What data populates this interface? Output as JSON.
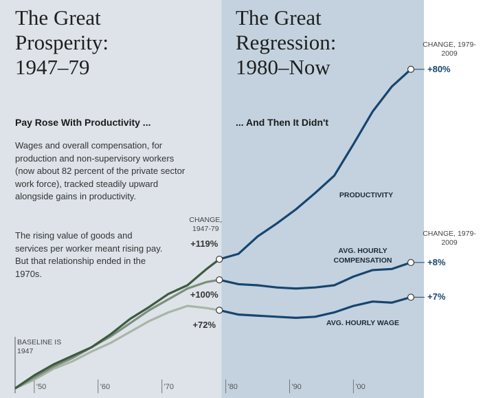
{
  "left_panel": {
    "title": "The Great Prosperity: 1947–79",
    "subtitle": "Pay Rose With Productivity ...",
    "paragraphs": [
      "Wages and overall compensation, for production and non-supervisory workers (now about 82 percent of the private sector work force), tracked steadily upward alongside gains in productivity.",
      "The rising value of goods and services per worker meant rising pay. But that relationship ended in the 1970s."
    ]
  },
  "right_panel": {
    "title": "The Great Regression: 1980–Now",
    "subtitle": "... And Then It Didn't"
  },
  "chart_data": {
    "type": "line",
    "x": [
      1947,
      1950,
      1953,
      1956,
      1959,
      1962,
      1965,
      1968,
      1971,
      1974,
      1977,
      1979,
      1982,
      1985,
      1988,
      1991,
      1994,
      1997,
      2000,
      2003,
      2006,
      2009
    ],
    "series": [
      {
        "name": "PRODUCTIVITY",
        "color": "#3f5a40",
        "color_after": "#17456f",
        "values": [
          0,
          12,
          22,
          30,
          38,
          50,
          64,
          75,
          87,
          95,
          110,
          119,
          124,
          140,
          152,
          165,
          180,
          196,
          225,
          255,
          278,
          294
        ]
      },
      {
        "name": "AVG. HOURLY COMPENSATION",
        "color": "#7d8f7b",
        "color_after": "#17456f",
        "values": [
          0,
          10,
          20,
          28,
          38,
          48,
          60,
          72,
          82,
          92,
          98,
          100,
          96,
          95,
          93,
          92,
          93,
          95,
          103,
          109,
          110,
          116
        ]
      },
      {
        "name": "AVG. HOURLY WAGE",
        "color": "#a9b5a6",
        "color_after": "#17456f",
        "values": [
          0,
          8,
          18,
          25,
          34,
          42,
          52,
          62,
          70,
          76,
          74,
          72,
          68,
          67,
          66,
          65,
          66,
          70,
          76,
          80,
          79,
          84
        ]
      }
    ],
    "xlim": [
      1947,
      2009
    ],
    "xticks": [
      {
        "value": 1950,
        "label": "'50"
      },
      {
        "value": 1960,
        "label": "'60"
      },
      {
        "value": 1970,
        "label": "'70"
      },
      {
        "value": 1980,
        "label": "'80"
      },
      {
        "value": 1990,
        "label": "'90"
      },
      {
        "value": 2000,
        "label": "'00"
      }
    ],
    "ylim": [
      0,
      330
    ],
    "baseline_note": "BASELINE IS 1947",
    "change_1947_79": {
      "label": "CHANGE, 1947-79",
      "x": 1979,
      "values": [
        119,
        100,
        72
      ],
      "value_labels": [
        "+119%",
        "+100%",
        "+72%"
      ]
    },
    "change_1979_2009": {
      "label": "CHANGE, 1979-2009",
      "x": 2009,
      "values": [
        80,
        8,
        7
      ],
      "value_labels": [
        "+80%",
        "+8%",
        "+7%"
      ]
    }
  }
}
